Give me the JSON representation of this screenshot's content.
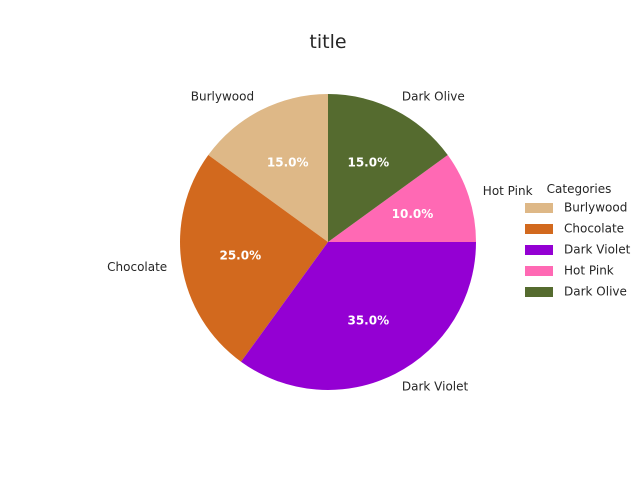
{
  "chart_data": {
    "type": "pie",
    "title": "title",
    "categories": [
      "Burlywood",
      "Chocolate",
      "Dark Violet",
      "Hot Pink",
      "Dark Olive"
    ],
    "values": [
      15.0,
      25.0,
      35.0,
      10.0,
      15.0
    ],
    "percent_labels": [
      "15.0%",
      "25.0%",
      "35.0%",
      "10.0%",
      "15.0%"
    ],
    "colors": [
      "#DEB887",
      "#D2691E",
      "#9400D3",
      "#FF69B4",
      "#556B2F"
    ],
    "legend": {
      "title": "Categories",
      "placement": "right"
    }
  }
}
